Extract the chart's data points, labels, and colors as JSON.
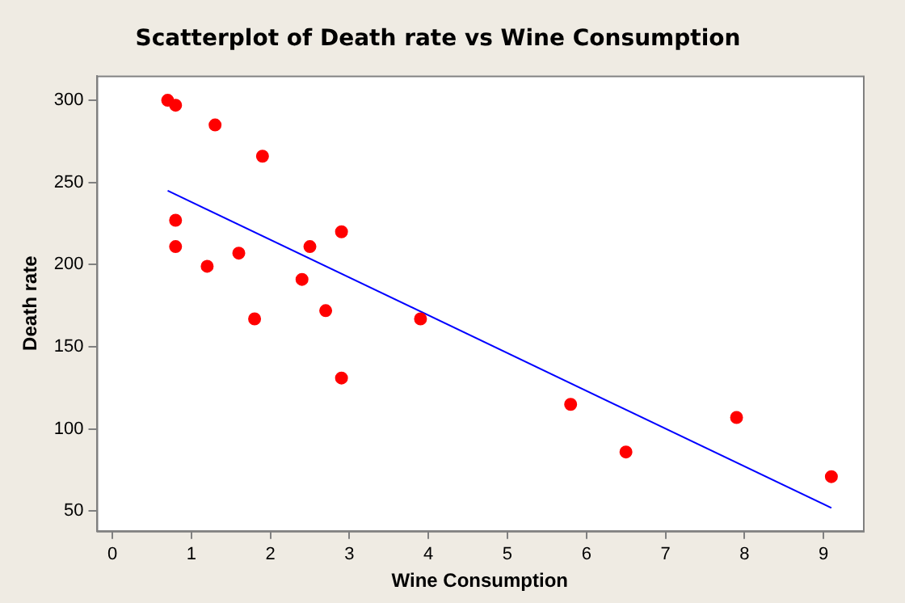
{
  "chart_data": {
    "type": "scatter",
    "title": "Scatterplot of Death rate vs Wine Consumption",
    "xlabel": "Wine Consumption",
    "ylabel": "Death rate",
    "xlim": [
      -0.2,
      9.5
    ],
    "xticks": [
      0,
      1,
      2,
      3,
      4,
      5,
      6,
      7,
      8,
      9
    ],
    "ylim": [
      38,
      315
    ],
    "yticks": [
      50,
      100,
      150,
      200,
      250,
      300
    ],
    "grid": false,
    "legend": false,
    "marker": "circle",
    "series": [
      {
        "color": "#ff0000",
        "x": [
          0.7,
          0.8,
          1.3,
          1.9,
          0.8,
          0.8,
          1.2,
          1.6,
          1.8,
          2.4,
          2.5,
          2.7,
          2.9,
          2.9,
          3.9,
          5.8,
          6.5,
          7.9,
          9.1
        ],
        "values": [
          300,
          297,
          285,
          266,
          227,
          211,
          199,
          207,
          167,
          191,
          211,
          172,
          220,
          131,
          167,
          115,
          86,
          107,
          71
        ]
      },
      {
        "type": "line",
        "color": "#0000ff",
        "x": [
          0.7,
          9.1
        ],
        "values": [
          245,
          52
        ],
        "marker": "none",
        "line_style": "solid"
      }
    ]
  }
}
